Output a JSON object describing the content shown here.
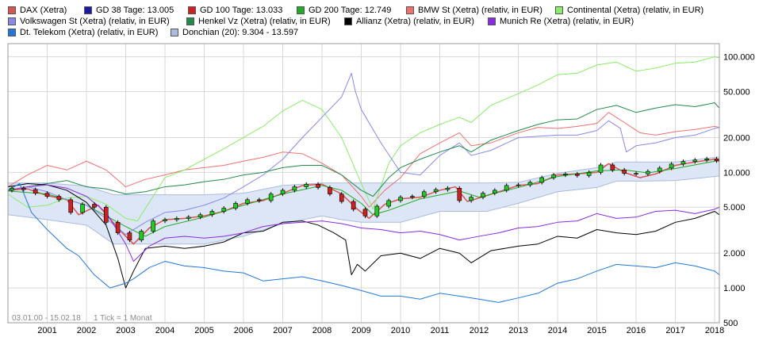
{
  "chart_data": {
    "type": "line",
    "title": "",
    "yscale": "log",
    "ylim": [
      500,
      130000
    ],
    "xlim": [
      2000.0,
      2018.12
    ],
    "y_ticks": [
      500,
      1000,
      2000,
      5000,
      10000,
      20000,
      50000,
      100000
    ],
    "y_tick_labels": [
      "500",
      "1.000",
      "2.000",
      "5.000",
      "10.000",
      "20.000",
      "50.000",
      "100.000"
    ],
    "x_ticks": [
      2001,
      2002,
      2003,
      2004,
      2005,
      2006,
      2007,
      2008,
      2009,
      2010,
      2011,
      2012,
      2013,
      2014,
      2015,
      2016,
      2017,
      2018
    ],
    "x_tick_labels": [
      "2001",
      "2002",
      "2003",
      "2004",
      "2005",
      "2006",
      "2007",
      "2008",
      "2009",
      "2010",
      "2011",
      "2012",
      "2013",
      "2014",
      "2015",
      "2016",
      "2017",
      "2018"
    ],
    "footer_range": "03.01.00 - 15.02.18",
    "footer_tick": "1 Tick = 1 Monat",
    "legend": [
      {
        "label": "DAX (Xetra)",
        "color": "#d9534f"
      },
      {
        "label": "GD 38 Tage: 13.005",
        "color": "#1a1aa6"
      },
      {
        "label": "GD 100 Tage: 13.033",
        "color": "#cc2222"
      },
      {
        "label": "GD 200 Tage: 12.749",
        "color": "#22aa22"
      },
      {
        "label": "BMW St (Xetra) (relativ, in EUR)",
        "color": "#f07070"
      },
      {
        "label": "Continental (Xetra) (relativ, in EUR)",
        "color": "#88ee66"
      },
      {
        "label": "Volkswagen St (Xetra) (relativ, in EUR)",
        "color": "#8888ee"
      },
      {
        "label": "Henkel Vz (Xetra) (relativ, in EUR)",
        "color": "#228b4a"
      },
      {
        "label": "Allianz (Xetra) (relativ, in EUR)",
        "color": "#000000"
      },
      {
        "label": "Munich Re (Xetra) (relativ, in EUR)",
        "color": "#8a2be2"
      },
      {
        "label": "Dt. Telekom (Xetra) (relativ, in EUR)",
        "color": "#2277dd"
      },
      {
        "label": "Donchian (20): 9.304 - 13.597",
        "color": "#aabbdd"
      }
    ],
    "series": [
      {
        "name": "DAX (Xetra)",
        "color": "#d9534f",
        "x": [
          2000.0,
          2000.5,
          2001.0,
          2001.5,
          2001.8,
          2002.3,
          2002.8,
          2003.0,
          2003.2,
          2003.6,
          2004.0,
          2004.5,
          2005.0,
          2005.5,
          2006.0,
          2006.5,
          2007.0,
          2007.5,
          2008.0,
          2008.5,
          2008.9,
          2009.2,
          2009.6,
          2010.0,
          2010.5,
          2011.0,
          2011.4,
          2011.7,
          2012.0,
          2012.5,
          2013.0,
          2013.5,
          2014.0,
          2014.5,
          2015.0,
          2015.3,
          2015.7,
          2016.1,
          2016.5,
          2017.0,
          2017.5,
          2018.0,
          2018.12
        ],
        "y": [
          7000,
          7200,
          6300,
          5800,
          4300,
          5200,
          3300,
          2800,
          2400,
          3300,
          3900,
          4000,
          4200,
          4600,
          5400,
          5700,
          6600,
          7700,
          7900,
          6500,
          4800,
          4000,
          5300,
          5900,
          6100,
          7000,
          7500,
          5600,
          6000,
          6800,
          7700,
          8000,
          9500,
          9700,
          10000,
          11900,
          10000,
          9000,
          9700,
          11500,
          12300,
          13000,
          12400
        ]
      },
      {
        "name": "GD 200 Tage: 12.749",
        "color": "#22aa22",
        "x": [
          2000.0,
          2001.0,
          2002.0,
          2003.0,
          2003.5,
          2004.0,
          2005.0,
          2006.0,
          2007.0,
          2008.0,
          2008.5,
          2009.0,
          2009.3,
          2009.7,
          2010.5,
          2011.5,
          2012.0,
          2013.0,
          2014.0,
          2015.0,
          2015.7,
          2016.3,
          2017.0,
          2018.12
        ],
        "y": [
          6900,
          6500,
          5200,
          3400,
          2800,
          3400,
          4100,
          5200,
          6500,
          7700,
          7000,
          5400,
          4300,
          4700,
          5900,
          6900,
          6100,
          7400,
          9200,
          10300,
          10500,
          9900,
          10800,
          12700
        ]
      },
      {
        "name": "BMW St (Xetra) (relativ, in EUR)",
        "color": "#f07070",
        "x": [
          2000.0,
          2000.5,
          2001.0,
          2001.5,
          2002.0,
          2002.5,
          2003.0,
          2003.5,
          2004.0,
          2004.5,
          2005.0,
          2005.5,
          2006.0,
          2006.5,
          2007.0,
          2007.5,
          2008.0,
          2008.5,
          2009.0,
          2009.2,
          2009.6,
          2010.0,
          2010.5,
          2011.0,
          2011.5,
          2011.8,
          2012.3,
          2013.0,
          2013.5,
          2014.0,
          2014.5,
          2015.0,
          2015.3,
          2015.7,
          2016.1,
          2016.5,
          2017.0,
          2017.5,
          2018.0,
          2018.12
        ],
        "y": [
          7500,
          9500,
          11500,
          10500,
          12500,
          10500,
          7500,
          8700,
          9500,
          10500,
          11000,
          11500,
          12500,
          13500,
          15000,
          14500,
          12000,
          9500,
          6200,
          5000,
          7000,
          9000,
          14500,
          18000,
          22000,
          17000,
          18000,
          22000,
          24500,
          24000,
          25000,
          26500,
          33000,
          27000,
          22000,
          21000,
          22500,
          23500,
          25000,
          24500
        ]
      },
      {
        "name": "Continental (Xetra) (relativ, in EUR)",
        "color": "#88ee66",
        "x": [
          2000.0,
          2000.5,
          2001.0,
          2001.5,
          2002.0,
          2002.5,
          2003.0,
          2003.3,
          2004.0,
          2004.5,
          2005.0,
          2005.5,
          2006.0,
          2006.5,
          2007.0,
          2007.5,
          2008.0,
          2008.5,
          2009.0,
          2009.3,
          2009.7,
          2010.0,
          2010.5,
          2011.0,
          2011.5,
          2011.8,
          2012.3,
          2013.0,
          2013.5,
          2014.0,
          2014.5,
          2015.0,
          2015.5,
          2016.0,
          2016.5,
          2017.0,
          2017.5,
          2018.0,
          2018.12
        ],
        "y": [
          6500,
          5000,
          5200,
          6000,
          6200,
          5300,
          4000,
          3800,
          9000,
          10500,
          13000,
          16000,
          20000,
          25000,
          34000,
          42000,
          35000,
          20000,
          8000,
          4800,
          12000,
          17000,
          22000,
          26000,
          30000,
          27000,
          38000,
          48000,
          57000,
          70000,
          72000,
          85000,
          90000,
          75000,
          80000,
          88000,
          90000,
          100000,
          98000
        ]
      },
      {
        "name": "Volkswagen St (Xetra) (relativ, in EUR)",
        "color": "#8888ee",
        "x": [
          2000.0,
          2000.5,
          2001.0,
          2001.5,
          2002.0,
          2002.5,
          2003.0,
          2003.5,
          2004.0,
          2004.5,
          2005.0,
          2005.5,
          2006.0,
          2006.5,
          2007.0,
          2007.5,
          2008.0,
          2008.5,
          2008.75,
          2008.85,
          2009.0,
          2009.5,
          2010.0,
          2010.5,
          2011.0,
          2011.5,
          2011.8,
          2012.3,
          2013.0,
          2013.5,
          2014.0,
          2014.5,
          2015.0,
          2015.3,
          2015.6,
          2015.75,
          2016.0,
          2016.5,
          2017.0,
          2017.5,
          2018.0,
          2018.12
        ],
        "y": [
          7000,
          7500,
          6800,
          5800,
          5200,
          4000,
          2900,
          3700,
          4500,
          4700,
          5200,
          6000,
          7500,
          9500,
          13000,
          20000,
          30000,
          45000,
          72000,
          50000,
          35000,
          18000,
          10000,
          9500,
          14000,
          18000,
          14000,
          15500,
          20000,
          20500,
          21000,
          21000,
          23000,
          28000,
          24000,
          15000,
          17000,
          18000,
          20000,
          21000,
          24000,
          24500
        ]
      },
      {
        "name": "Henkel Vz (Xetra) (relativ, in EUR)",
        "color": "#228b4a",
        "x": [
          2000.0,
          2000.5,
          2001.0,
          2001.5,
          2002.0,
          2002.5,
          2003.0,
          2003.5,
          2004.0,
          2004.5,
          2005.0,
          2005.5,
          2006.0,
          2006.5,
          2007.0,
          2007.5,
          2008.0,
          2008.5,
          2009.0,
          2009.3,
          2009.7,
          2010.0,
          2010.5,
          2011.0,
          2011.5,
          2011.8,
          2012.3,
          2013.0,
          2013.5,
          2014.0,
          2014.5,
          2015.0,
          2015.5,
          2016.0,
          2016.5,
          2017.0,
          2017.5,
          2018.0,
          2018.12
        ],
        "y": [
          7000,
          7500,
          8000,
          8500,
          7500,
          7200,
          6500,
          6800,
          7500,
          7800,
          8300,
          8700,
          9500,
          10000,
          11000,
          11500,
          11500,
          9500,
          7000,
          6200,
          9000,
          11000,
          13000,
          15000,
          17000,
          15000,
          19000,
          23000,
          26000,
          28500,
          29000,
          35000,
          38000,
          33000,
          36000,
          38500,
          37000,
          40000,
          36000
        ]
      },
      {
        "name": "Allianz (Xetra) (relativ, in EUR)",
        "color": "#000000",
        "x": [
          2000.0,
          2000.5,
          2001.0,
          2001.5,
          2002.0,
          2002.5,
          2002.8,
          2003.0,
          2003.2,
          2003.5,
          2004.0,
          2004.5,
          2005.0,
          2005.5,
          2006.0,
          2006.5,
          2007.0,
          2007.5,
          2007.9,
          2008.3,
          2008.6,
          2008.75,
          2008.9,
          2009.1,
          2009.5,
          2010.0,
          2010.5,
          2011.0,
          2011.5,
          2011.8,
          2012.3,
          2013.0,
          2013.5,
          2014.0,
          2014.5,
          2015.0,
          2015.5,
          2016.0,
          2016.5,
          2017.0,
          2017.5,
          2018.0,
          2018.12
        ],
        "y": [
          7500,
          8000,
          7800,
          7000,
          5500,
          3500,
          1800,
          1000,
          1400,
          2200,
          2300,
          2200,
          2300,
          2500,
          3000,
          3100,
          3700,
          3800,
          3500,
          3000,
          2600,
          1300,
          1600,
          1400,
          1900,
          2000,
          1800,
          2200,
          2000,
          1650,
          2100,
          2300,
          2400,
          2800,
          2700,
          3200,
          3000,
          2900,
          3100,
          3700,
          4000,
          4600,
          4300
        ]
      },
      {
        "name": "Munich Re (Xetra) (relativ, in EUR)",
        "color": "#8a2be2",
        "x": [
          2000.0,
          2000.5,
          2001.0,
          2001.5,
          2002.0,
          2002.5,
          2003.0,
          2003.2,
          2003.6,
          2004.0,
          2004.5,
          2005.0,
          2005.5,
          2006.0,
          2006.5,
          2007.0,
          2007.5,
          2008.0,
          2008.5,
          2009.0,
          2009.5,
          2010.0,
          2010.5,
          2011.0,
          2011.5,
          2012.0,
          2012.5,
          2013.0,
          2013.5,
          2014.0,
          2014.5,
          2015.0,
          2015.5,
          2016.0,
          2016.5,
          2017.0,
          2017.5,
          2018.0,
          2018.12
        ],
        "y": [
          7000,
          7500,
          7800,
          7300,
          6200,
          4500,
          2400,
          1700,
          2300,
          2700,
          2800,
          2700,
          2800,
          3000,
          3400,
          3600,
          3700,
          3800,
          3600,
          3300,
          3200,
          3000,
          3100,
          2900,
          2600,
          2800,
          3000,
          3300,
          3400,
          3700,
          3800,
          4400,
          4000,
          4100,
          4600,
          4700,
          4400,
          4800,
          5000
        ]
      },
      {
        "name": "Dt. Telekom (Xetra) (relativ, in EUR)",
        "color": "#2277dd",
        "x": [
          2000.0,
          2000.3,
          2000.6,
          2001.0,
          2001.5,
          2001.8,
          2002.2,
          2002.6,
          2003.0,
          2003.2,
          2003.6,
          2004.0,
          2004.5,
          2005.0,
          2005.5,
          2006.0,
          2006.5,
          2007.0,
          2007.5,
          2008.0,
          2008.5,
          2009.0,
          2009.5,
          2010.0,
          2010.5,
          2011.0,
          2011.5,
          2012.0,
          2012.5,
          2013.0,
          2013.5,
          2014.0,
          2014.5,
          2015.0,
          2015.5,
          2016.0,
          2016.5,
          2017.0,
          2017.5,
          2018.0,
          2018.12
        ],
        "y": [
          7000,
          8000,
          4500,
          3200,
          2200,
          1900,
          1300,
          1000,
          1100,
          1200,
          1500,
          1700,
          1550,
          1500,
          1400,
          1350,
          1150,
          1200,
          1250,
          1150,
          1050,
          950,
          850,
          850,
          800,
          900,
          850,
          800,
          750,
          820,
          900,
          1100,
          1200,
          1400,
          1600,
          1550,
          1500,
          1650,
          1550,
          1400,
          1300
        ]
      }
    ],
    "candles": {
      "name": "DAX (Xetra)",
      "up_color": "#22cc22",
      "down_color": "#cc2222",
      "x": [
        2000.1,
        2000.4,
        2000.7,
        2001.0,
        2001.3,
        2001.6,
        2001.9,
        2002.2,
        2002.5,
        2002.8,
        2003.1,
        2003.4,
        2003.7,
        2004.0,
        2004.3,
        2004.6,
        2004.9,
        2005.2,
        2005.5,
        2005.8,
        2006.1,
        2006.4,
        2006.7,
        2007.0,
        2007.3,
        2007.6,
        2007.9,
        2008.2,
        2008.5,
        2008.8,
        2009.1,
        2009.4,
        2009.7,
        2010.0,
        2010.3,
        2010.6,
        2010.9,
        2011.2,
        2011.5,
        2011.8,
        2012.1,
        2012.4,
        2012.7,
        2013.0,
        2013.3,
        2013.6,
        2013.9,
        2014.2,
        2014.5,
        2014.8,
        2015.1,
        2015.4,
        2015.7,
        2016.0,
        2016.3,
        2016.6,
        2016.9,
        2017.2,
        2017.5,
        2017.8,
        2018.05
      ],
      "open": [
        7000,
        7300,
        7100,
        6600,
        6200,
        5800,
        4500,
        5300,
        5000,
        3700,
        3000,
        2600,
        3100,
        3800,
        3900,
        4000,
        4100,
        4300,
        4600,
        4900,
        5400,
        5800,
        5700,
        6500,
        7000,
        7500,
        7900,
        7400,
        6500,
        5600,
        4800,
        4200,
        5100,
        5700,
        6100,
        6200,
        6800,
        7100,
        7300,
        5700,
        6100,
        6600,
        7000,
        7700,
        7800,
        8200,
        9000,
        9500,
        9700,
        9400,
        10000,
        11600,
        10500,
        9800,
        9700,
        10200,
        10900,
        11800,
        12400,
        12800,
        13100
      ],
      "close": [
        7300,
        7100,
        6600,
        6200,
        5800,
        4500,
        5300,
        5000,
        3700,
        3000,
        2600,
        3100,
        3800,
        3900,
        4000,
        4100,
        4300,
        4600,
        4900,
        5400,
        5800,
        5700,
        6500,
        7000,
        7500,
        7900,
        7400,
        6500,
        5600,
        4800,
        4200,
        5100,
        5700,
        6100,
        6200,
        6800,
        7100,
        7300,
        5700,
        6100,
        6600,
        7000,
        7700,
        7800,
        8200,
        9000,
        9500,
        9700,
        9400,
        10000,
        11600,
        10500,
        9800,
        9700,
        10200,
        10900,
        11800,
        12400,
        12800,
        13100,
        12600
      ]
    },
    "donchian": {
      "name": "Donchian (20): 9.304 - 13.597",
      "color": "#aabbdd",
      "fill": "#dde6f6",
      "x": [
        2000.0,
        2001.0,
        2002.0,
        2002.7,
        2003.3,
        2004.0,
        2005.0,
        2006.0,
        2007.0,
        2008.0,
        2008.5,
        2009.0,
        2009.5,
        2010.0,
        2011.0,
        2011.7,
        2012.2,
        2013.0,
        2014.0,
        2015.0,
        2015.5,
        2016.2,
        2017.0,
        2018.12
      ],
      "upper": [
        8100,
        8100,
        7600,
        6400,
        6400,
        6400,
        6400,
        6600,
        7700,
        8100,
        8100,
        8100,
        8100,
        8100,
        8100,
        8100,
        8100,
        8200,
        9800,
        11000,
        12300,
        12300,
        12300,
        13600
      ],
      "lower": [
        4300,
        3900,
        3500,
        2400,
        2400,
        2400,
        2400,
        2800,
        3600,
        4200,
        3900,
        3700,
        3700,
        3700,
        4600,
        4600,
        4600,
        5400,
        6800,
        7400,
        8400,
        8400,
        8500,
        9300
      ]
    }
  }
}
